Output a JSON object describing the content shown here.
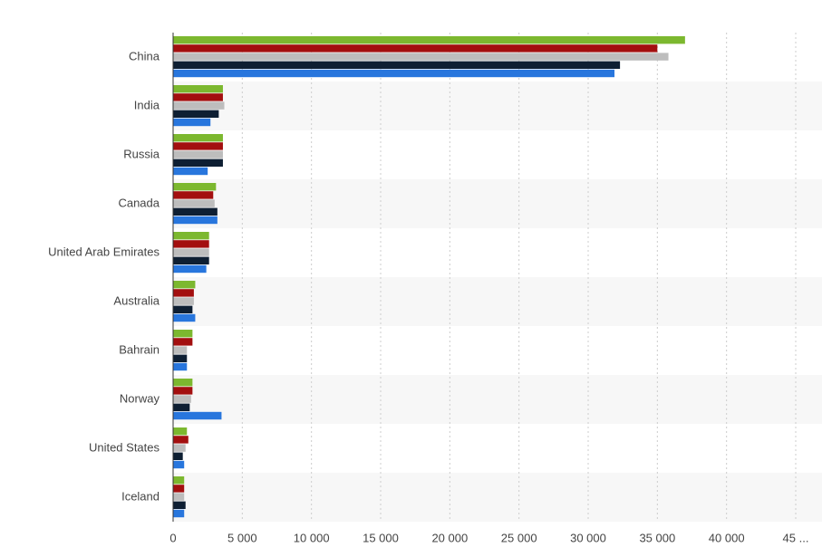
{
  "chart_data": {
    "type": "hbar",
    "categories": [
      "China",
      "India",
      "Russia",
      "Canada",
      "United Arab Emirates",
      "Australia",
      "Bahrain",
      "Norway",
      "United States",
      "Iceland"
    ],
    "series": [
      {
        "color": "#7cb82f",
        "values": [
          37000,
          3600,
          3600,
          3100,
          2600,
          1600,
          1400,
          1400,
          1000,
          800
        ]
      },
      {
        "color": "#a30f0f",
        "values": [
          35000,
          3600,
          3600,
          2900,
          2600,
          1500,
          1400,
          1400,
          1100,
          800
        ]
      },
      {
        "color": "#bdbdbd",
        "values": [
          35800,
          3700,
          3600,
          3000,
          2600,
          1500,
          1000,
          1300,
          900,
          800
        ]
      },
      {
        "color": "#0e1f33",
        "values": [
          32300,
          3300,
          3600,
          3200,
          2600,
          1400,
          1000,
          1200,
          700,
          900
        ]
      },
      {
        "color": "#2876dd",
        "values": [
          31900,
          2700,
          2500,
          3200,
          2400,
          1600,
          1000,
          3500,
          800,
          800
        ]
      }
    ],
    "xlim": [
      0,
      45000
    ],
    "xticks": [
      0,
      {
        "value": 5000,
        "label": "5 000"
      },
      {
        "value": 10000,
        "label": "10 000"
      },
      {
        "value": 15000,
        "label": "15 000"
      },
      {
        "value": 20000,
        "label": "20 000"
      },
      {
        "value": 25000,
        "label": "25 000"
      },
      {
        "value": 30000,
        "label": "30 000"
      },
      {
        "value": 35000,
        "label": "35 000"
      },
      {
        "value": 40000,
        "label": "40 000"
      },
      {
        "value": 45000,
        "label": "45 ..."
      }
    ],
    "grid": true
  }
}
